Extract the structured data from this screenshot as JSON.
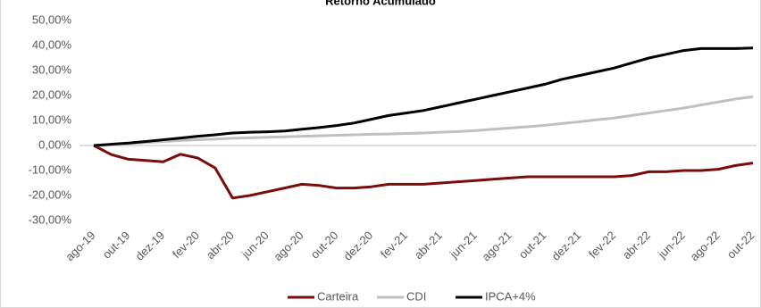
{
  "chart_data": {
    "type": "line",
    "title": "Retorno Acumulado",
    "categories": [
      "ago-19",
      null,
      "out-19",
      null,
      "dez-19",
      null,
      "fev-20",
      null,
      "abr-20",
      null,
      "jun-20",
      null,
      "ago-20",
      null,
      "out-20",
      null,
      "dez-20",
      null,
      "fev-21",
      null,
      "abr-21",
      null,
      "jun-21",
      null,
      "ago-21",
      null,
      "out-21",
      null,
      "dez-21",
      null,
      "fev-22",
      null,
      "abr-22",
      null,
      "jun-22",
      null,
      "ago-22",
      null,
      "out-22"
    ],
    "series": [
      {
        "name": "Carteira",
        "color": "#7b0c0c",
        "values": [
          0,
          -3.6,
          -5.5,
          -6,
          -6.5,
          -3.5,
          -5,
          -9,
          -21,
          -20,
          -18.5,
          -17,
          -15.5,
          -16,
          -17,
          -17,
          -16.5,
          -15.5,
          -15.5,
          -15.5,
          -15,
          -14.5,
          -14,
          -13.5,
          -13,
          -12.5,
          -12.5,
          -12.5,
          -12.5,
          -12.5,
          -12.5,
          -12,
          -10.5,
          -10.5,
          -10,
          -10,
          -9.5,
          -8,
          -7
        ]
      },
      {
        "name": "CDI",
        "color": "#c0c0c0",
        "values": [
          0,
          0.4,
          0.8,
          1.2,
          1.6,
          2,
          2.3,
          2.6,
          2.9,
          3.1,
          3.3,
          3.5,
          3.7,
          3.9,
          4.1,
          4.3,
          4.5,
          4.6,
          4.8,
          5,
          5.3,
          5.6,
          6,
          6.5,
          7,
          7.5,
          8.1,
          8.8,
          9.5,
          10.3,
          11,
          12,
          13,
          14,
          15,
          16.2,
          17.4,
          18.6,
          19.5
        ]
      },
      {
        "name": "IPCA+4%",
        "color": "#000000",
        "values": [
          0,
          0.5,
          1,
          1.6,
          2.3,
          3,
          3.7,
          4.3,
          5,
          5.3,
          5.5,
          5.8,
          6.5,
          7.2,
          8,
          9,
          10.5,
          12,
          13,
          14,
          15.5,
          17,
          18.5,
          20,
          21.5,
          23,
          24.5,
          26.5,
          28,
          29.5,
          31,
          33,
          35,
          36.5,
          38,
          38.8,
          38.8,
          38.8,
          39
        ]
      }
    ],
    "ylim": [
      -30,
      50
    ],
    "yticks": [
      {
        "value": -30,
        "label": "-30,00%"
      },
      {
        "value": -20,
        "label": "-20,00%"
      },
      {
        "value": -10,
        "label": "-10,00%"
      },
      {
        "value": 0,
        "label": "0,00%"
      },
      {
        "value": 10,
        "label": "10,00%"
      },
      {
        "value": 20,
        "label": "20,00%"
      },
      {
        "value": 30,
        "label": "30,00%"
      },
      {
        "value": 40,
        "label": "40,00%"
      },
      {
        "value": 50,
        "label": "50,00%"
      }
    ],
    "grid": false,
    "legend": "bottom"
  }
}
